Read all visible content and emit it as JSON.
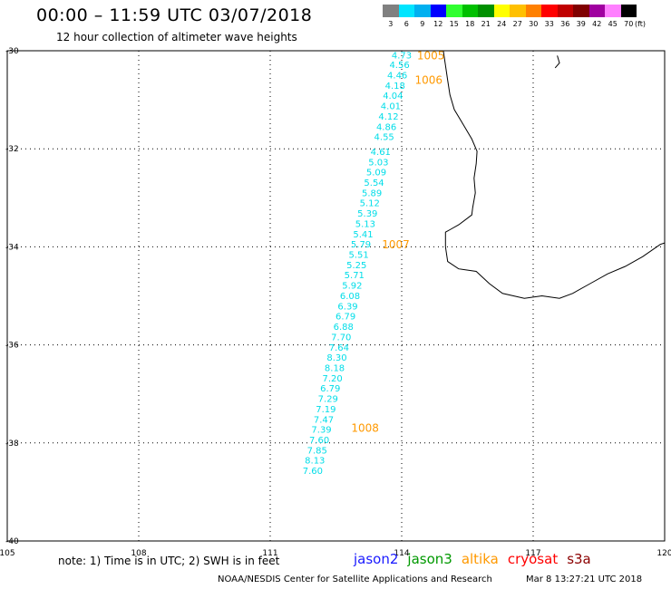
{
  "header": {
    "title": "00:00 – 11:59 UTC 03/07/2018",
    "subtitle": "12 hour collection of altimeter wave heights"
  },
  "colorbar": {
    "unit_label": "(ft)",
    "bins": [
      {
        "label": "3",
        "color": "#808080"
      },
      {
        "label": "6",
        "color": "#00e5ff"
      },
      {
        "label": "9",
        "color": "#00b0f0"
      },
      {
        "label": "12",
        "color": "#0000ff"
      },
      {
        "label": "15",
        "color": "#30ff30"
      },
      {
        "label": "18",
        "color": "#00c000"
      },
      {
        "label": "21",
        "color": "#009000"
      },
      {
        "label": "24",
        "color": "#ffff00"
      },
      {
        "label": "27",
        "color": "#ffc000"
      },
      {
        "label": "30",
        "color": "#ff8000"
      },
      {
        "label": "33",
        "color": "#ff0000"
      },
      {
        "label": "36",
        "color": "#c00000"
      },
      {
        "label": "39",
        "color": "#800000"
      },
      {
        "label": "42",
        "color": "#a000a0"
      },
      {
        "label": "45",
        "color": "#ff80ff"
      },
      {
        "label": "70",
        "color": "#000000"
      }
    ]
  },
  "map": {
    "lon_range": [
      105,
      120
    ],
    "lat_range": [
      -40,
      -30
    ],
    "lon_ticks": [
      "105",
      "108",
      "111",
      "114",
      "117",
      "120"
    ],
    "lat_ticks": [
      "-30",
      "-32",
      "-34",
      "-36",
      "-38",
      "-40"
    ],
    "track_color": "#00dde8",
    "time_label_color": "#ff9900",
    "swh_observations": [
      {
        "lat": -30.08,
        "lon": 114.0,
        "swh": "4.73"
      },
      {
        "lat": -30.28,
        "lon": 113.95,
        "swh": "4.56"
      },
      {
        "lat": -30.49,
        "lon": 113.9,
        "swh": "4.46"
      },
      {
        "lat": -30.7,
        "lon": 113.85,
        "swh": "4.18"
      },
      {
        "lat": -30.91,
        "lon": 113.8,
        "swh": "4.04"
      },
      {
        "lat": -31.12,
        "lon": 113.75,
        "swh": "4.01"
      },
      {
        "lat": -31.33,
        "lon": 113.7,
        "swh": "4.12"
      },
      {
        "lat": -31.54,
        "lon": 113.65,
        "swh": "4.86"
      },
      {
        "lat": -31.75,
        "lon": 113.6,
        "swh": "4.55"
      },
      {
        "lat": -32.05,
        "lon": 113.52,
        "swh": "4.61"
      },
      {
        "lat": -32.26,
        "lon": 113.47,
        "swh": "5.03"
      },
      {
        "lat": -32.47,
        "lon": 113.42,
        "swh": "5.09"
      },
      {
        "lat": -32.68,
        "lon": 113.37,
        "swh": "5.54"
      },
      {
        "lat": -32.89,
        "lon": 113.32,
        "swh": "5.89"
      },
      {
        "lat": -33.1,
        "lon": 113.27,
        "swh": "5.12"
      },
      {
        "lat": -33.31,
        "lon": 113.22,
        "swh": "5.39"
      },
      {
        "lat": -33.52,
        "lon": 113.17,
        "swh": "5.13"
      },
      {
        "lat": -33.73,
        "lon": 113.12,
        "swh": "5.41"
      },
      {
        "lat": -33.94,
        "lon": 113.07,
        "swh": "5.79"
      },
      {
        "lat": -34.15,
        "lon": 113.02,
        "swh": "5.51"
      },
      {
        "lat": -34.36,
        "lon": 112.97,
        "swh": "5.25"
      },
      {
        "lat": -34.57,
        "lon": 112.92,
        "swh": "5.71"
      },
      {
        "lat": -34.78,
        "lon": 112.87,
        "swh": "5.92"
      },
      {
        "lat": -34.99,
        "lon": 112.82,
        "swh": "6.08"
      },
      {
        "lat": -35.2,
        "lon": 112.77,
        "swh": "6.39"
      },
      {
        "lat": -35.41,
        "lon": 112.72,
        "swh": "6.79"
      },
      {
        "lat": -35.62,
        "lon": 112.67,
        "swh": "6.88"
      },
      {
        "lat": -35.83,
        "lon": 112.62,
        "swh": "7.70"
      },
      {
        "lat": -36.04,
        "lon": 112.57,
        "swh": "7.64"
      },
      {
        "lat": -36.25,
        "lon": 112.52,
        "swh": "8.30"
      },
      {
        "lat": -36.46,
        "lon": 112.47,
        "swh": "8.18"
      },
      {
        "lat": -36.67,
        "lon": 112.42,
        "swh": "7.20"
      },
      {
        "lat": -36.88,
        "lon": 112.37,
        "swh": "6.79"
      },
      {
        "lat": -37.09,
        "lon": 112.32,
        "swh": "7.29"
      },
      {
        "lat": -37.3,
        "lon": 112.27,
        "swh": "7.19"
      },
      {
        "lat": -37.51,
        "lon": 112.22,
        "swh": "7.47"
      },
      {
        "lat": -37.72,
        "lon": 112.17,
        "swh": "7.39"
      },
      {
        "lat": -37.93,
        "lon": 112.12,
        "swh": "7.60"
      },
      {
        "lat": -38.14,
        "lon": 112.07,
        "swh": "7.85"
      },
      {
        "lat": -38.35,
        "lon": 112.02,
        "swh": "8.13"
      },
      {
        "lat": -38.56,
        "lon": 111.97,
        "swh": "7.60"
      }
    ],
    "time_labels": [
      {
        "lat": -30.08,
        "lon": 114.35,
        "text": "1005"
      },
      {
        "lat": -30.58,
        "lon": 114.3,
        "text": "1006"
      },
      {
        "lat": -33.94,
        "lon": 113.55,
        "text": "1007"
      },
      {
        "lat": -37.68,
        "lon": 112.85,
        "text": "1008"
      }
    ]
  },
  "footer": {
    "note": "note: 1) Time is in UTC; 2) SWH is in feet",
    "missions": [
      {
        "name": "jason2",
        "color": "#1a1aff"
      },
      {
        "name": "jason3",
        "color": "#009900"
      },
      {
        "name": "altika",
        "color": "#ff9900"
      },
      {
        "name": "cryosat",
        "color": "#ff0000"
      },
      {
        "name": "s3a",
        "color": "#8b0000"
      }
    ],
    "credit": "NOAA/NESDIS Center for Satellite Applications and Research",
    "generated": "Mar  8 13:27:21 UTC 2018"
  }
}
